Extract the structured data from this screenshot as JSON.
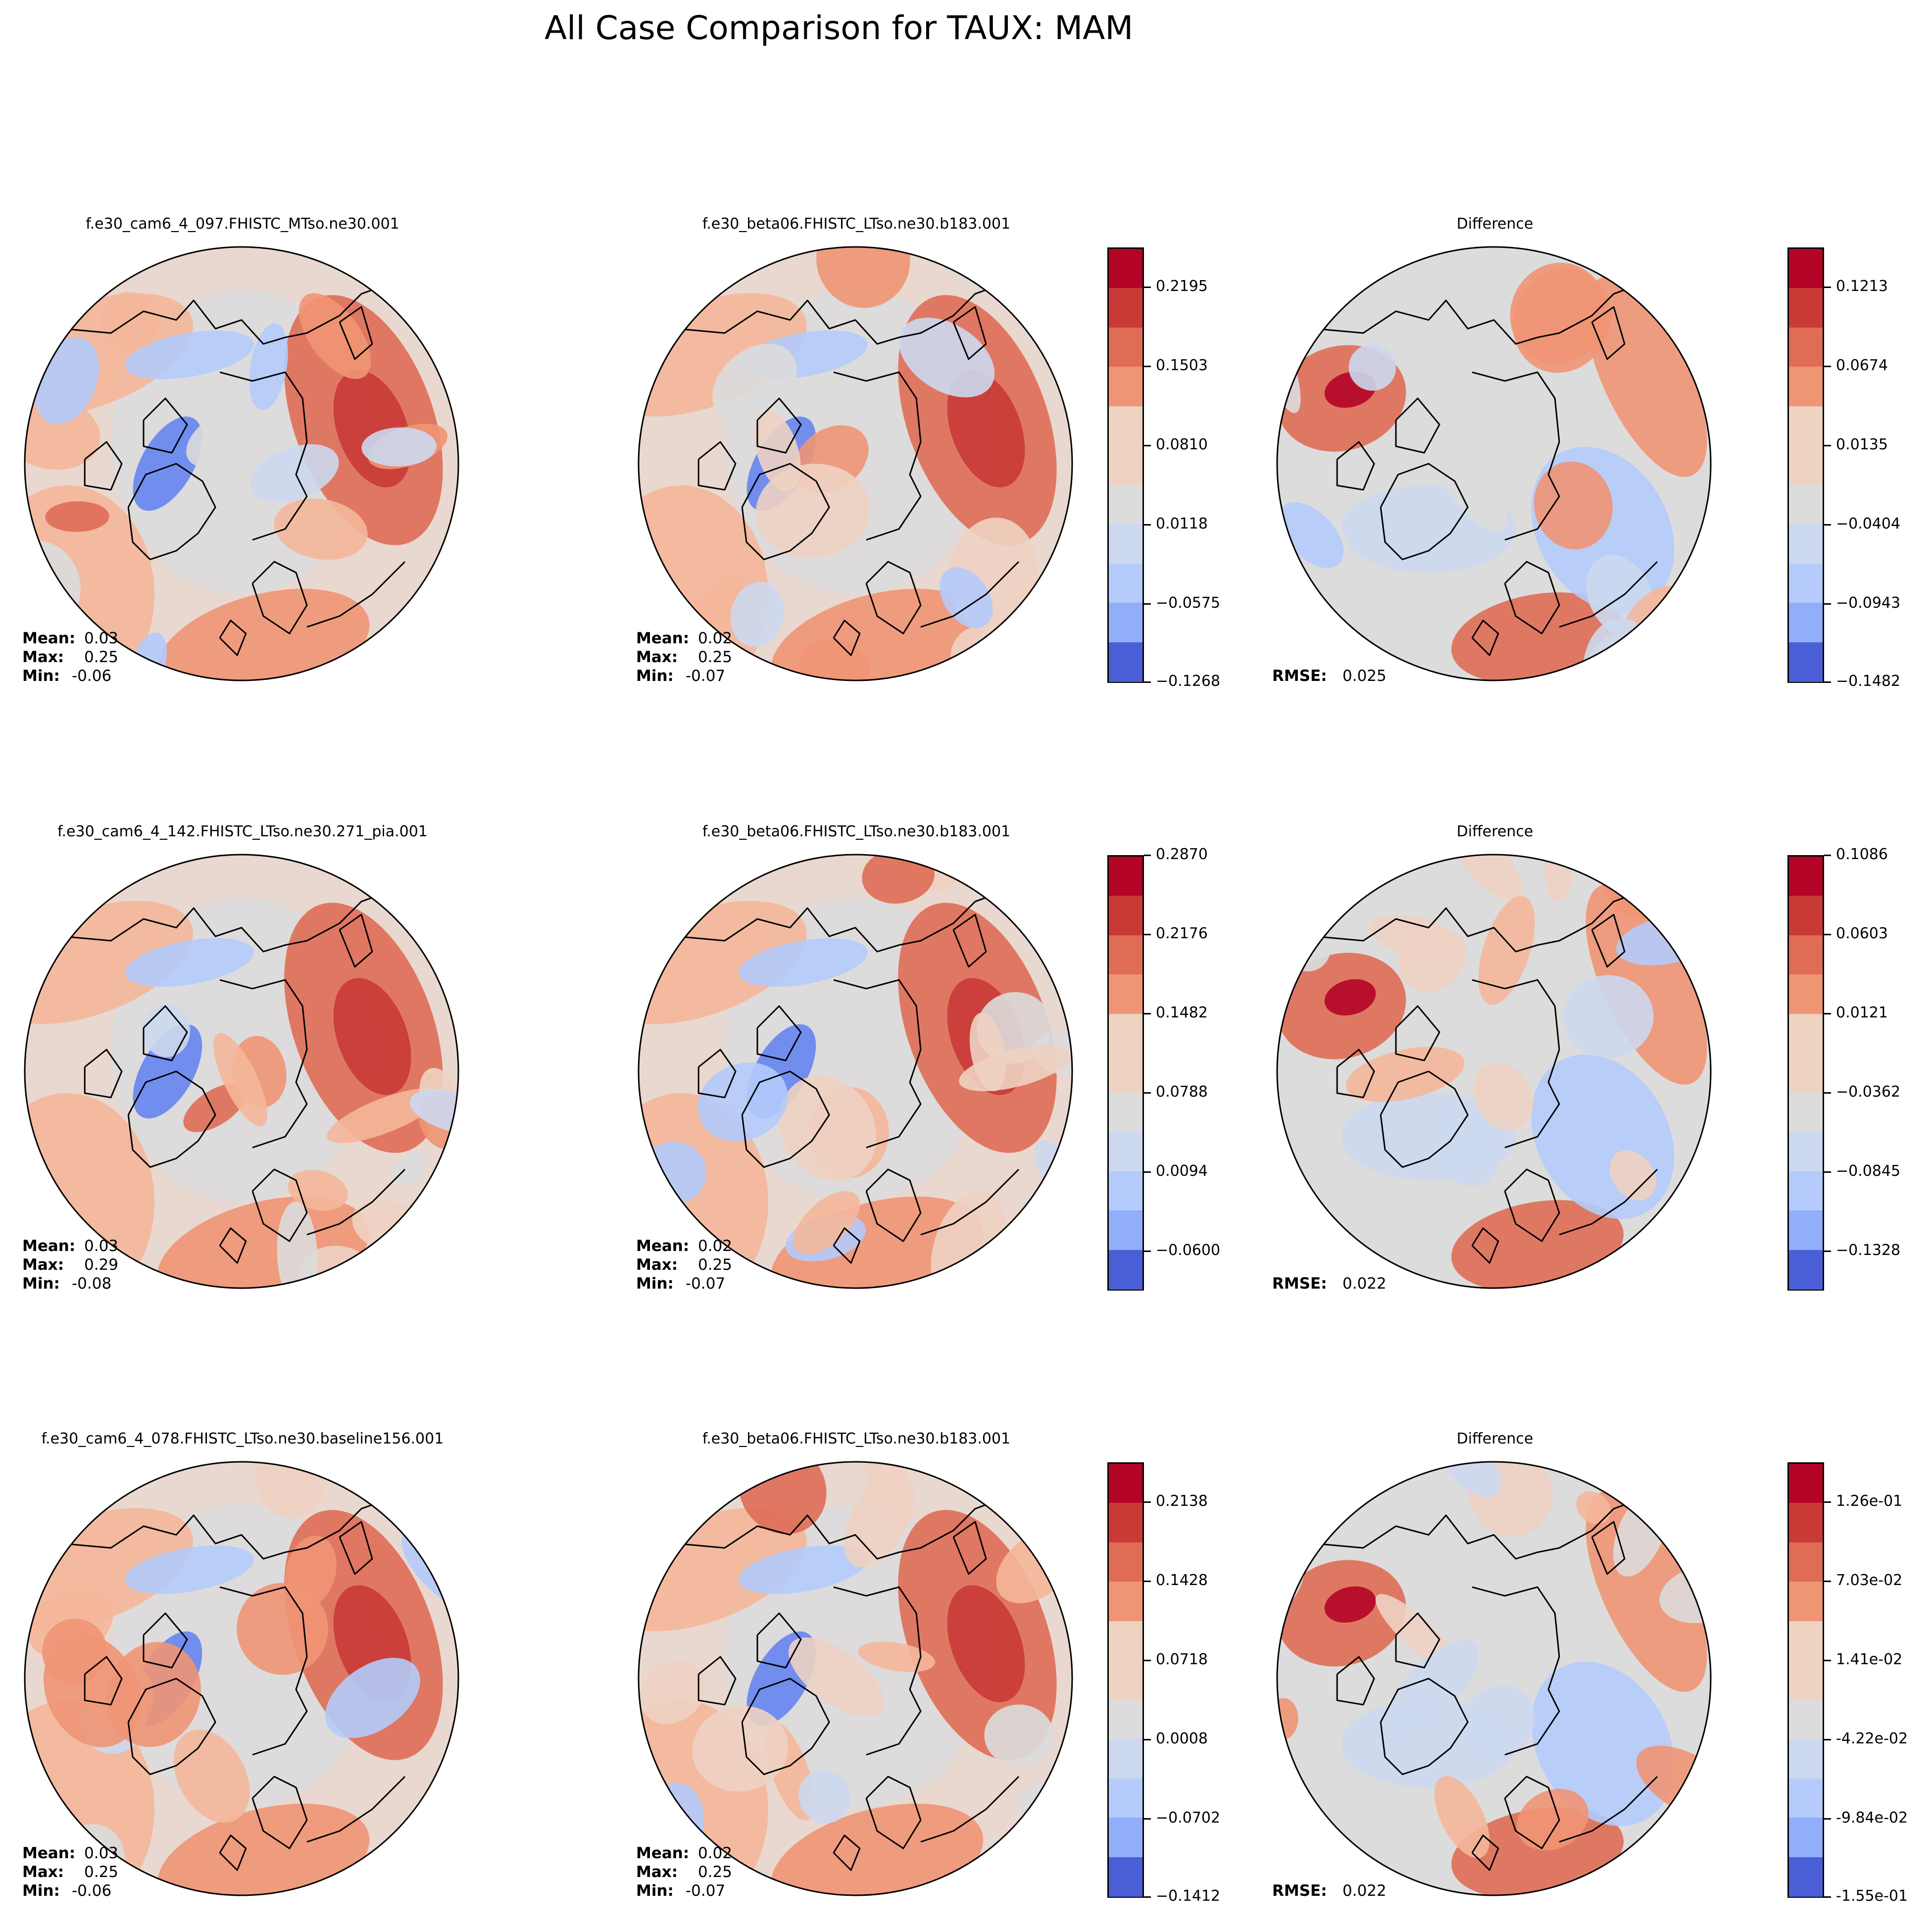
{
  "figure_title": "All Case Comparison for TAUX: MAM",
  "chart_data": [
    {
      "type": "heatmap",
      "projection": "north-polar-stereographic",
      "title": "f.e30_cam6_4_097.FHISTC_MTso.ne30.001",
      "stats": [
        {
          "label": "Mean:",
          "value": "0.03"
        },
        {
          "label": "Max:",
          "value": "0.25"
        },
        {
          "label": "Min:",
          "value": "-0.06"
        }
      ]
    },
    {
      "type": "heatmap",
      "projection": "north-polar-stereographic",
      "title": "f.e30_beta06.FHISTC_LTso.ne30.b183.001",
      "stats": [
        {
          "label": "Mean:",
          "value": "0.02"
        },
        {
          "label": "Max:",
          "value": "0.25"
        },
        {
          "label": "Min:",
          "value": "-0.07"
        }
      ],
      "colorbar": {
        "ticks": [
          "0.2195",
          "0.1503",
          "0.0810",
          "0.0118",
          "−0.0575",
          "−0.1268"
        ],
        "range": [
          -0.1268,
          0.2541
        ],
        "levels": 11,
        "colormap": "coolwarm"
      }
    },
    {
      "type": "heatmap",
      "projection": "north-polar-stereographic",
      "title": "Difference",
      "stats": [
        {
          "label": "RMSE:",
          "value": "0.025"
        }
      ],
      "colorbar": {
        "ticks": [
          "0.1213",
          "0.0674",
          "0.0135",
          "−0.0404",
          "−0.0943",
          "−0.1482"
        ],
        "range": [
          -0.1482,
          0.1483
        ],
        "levels": 11,
        "colormap": "coolwarm"
      }
    },
    {
      "type": "heatmap",
      "projection": "north-polar-stereographic",
      "title": "f.e30_cam6_4_142.FHISTC_LTso.ne30.271_pia.001",
      "stats": [
        {
          "label": "Mean:",
          "value": "0.03"
        },
        {
          "label": "Max:",
          "value": "0.29"
        },
        {
          "label": "Min:",
          "value": "-0.08"
        }
      ]
    },
    {
      "type": "heatmap",
      "projection": "north-polar-stereographic",
      "title": "f.e30_beta06.FHISTC_LTso.ne30.b183.001",
      "stats": [
        {
          "label": "Mean:",
          "value": "0.02"
        },
        {
          "label": "Max:",
          "value": "0.25"
        },
        {
          "label": "Min:",
          "value": "-0.07"
        }
      ],
      "colorbar": {
        "ticks": [
          "0.2870",
          "0.2176",
          "0.1482",
          "0.0788",
          "0.0094",
          "−0.0600"
        ],
        "range": [
          -0.0947,
          0.287
        ],
        "levels": 11,
        "colormap": "coolwarm"
      }
    },
    {
      "type": "heatmap",
      "projection": "north-polar-stereographic",
      "title": "Difference",
      "stats": [
        {
          "label": "RMSE:",
          "value": "0.022"
        }
      ],
      "colorbar": {
        "ticks": [
          "0.1086",
          "0.0603",
          "0.0121",
          "−0.0362",
          "−0.0845",
          "−0.1328"
        ],
        "range": [
          -0.1328,
          0.1328
        ],
        "levels": 11,
        "colormap": "coolwarm"
      }
    },
    {
      "type": "heatmap",
      "projection": "north-polar-stereographic",
      "title": "f.e30_cam6_4_078.FHISTC_LTso.ne30.baseline156.001",
      "stats": [
        {
          "label": "Mean:",
          "value": "0.03"
        },
        {
          "label": "Max:",
          "value": "0.25"
        },
        {
          "label": "Min:",
          "value": "-0.06"
        }
      ]
    },
    {
      "type": "heatmap",
      "projection": "north-polar-stereographic",
      "title": "f.e30_beta06.FHISTC_LTso.ne30.b183.001",
      "stats": [
        {
          "label": "Mean:",
          "value": "0.02"
        },
        {
          "label": "Max:",
          "value": "0.25"
        },
        {
          "label": "Min:",
          "value": "-0.07"
        }
      ],
      "colorbar": {
        "ticks": [
          "0.2138",
          "0.1428",
          "0.0718",
          "0.0008",
          "−0.0702",
          "−0.1412"
        ],
        "range": [
          -0.1412,
          0.2493
        ],
        "levels": 11,
        "colormap": "coolwarm"
      }
    },
    {
      "type": "heatmap",
      "projection": "north-polar-stereographic",
      "title": "Difference",
      "stats": [
        {
          "label": "RMSE:",
          "value": "0.022"
        }
      ],
      "colorbar": {
        "ticks": [
          "1.26e-01",
          "7.03e-02",
          "1.41e-02",
          "-4.22e-02",
          "-9.84e-02",
          "-1.55e-01"
        ],
        "range": [
          -0.155,
          0.155
        ],
        "levels": 11,
        "colormap": "coolwarm"
      }
    }
  ],
  "colormap_colors": [
    "#4a5fd6",
    "#6584ef",
    "#90aefa",
    "#b4cbfb",
    "#ccd8ee",
    "#dcdcdc",
    "#eed2c2",
    "#f4b79a",
    "#ef9574",
    "#df6d55",
    "#c93a37",
    "#b40426"
  ]
}
